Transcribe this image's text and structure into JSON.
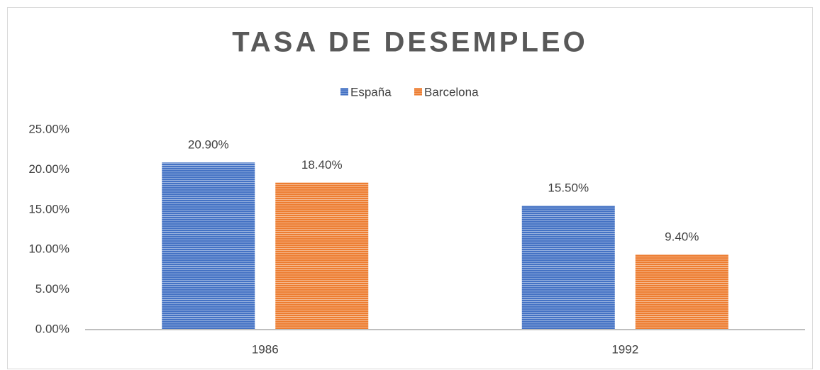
{
  "chart_data": {
    "type": "bar",
    "title": "TASA DE DESEMPLEO",
    "categories": [
      "1986",
      "1992"
    ],
    "series": [
      {
        "name": "España",
        "color": "#4472c4",
        "values": [
          20.9,
          15.5
        ],
        "value_labels": [
          "20.90%",
          "15.50%"
        ]
      },
      {
        "name": "Barcelona",
        "color": "#ed7d31",
        "values": [
          18.4,
          9.4
        ],
        "value_labels": [
          "18.40%",
          "9.40%"
        ]
      }
    ],
    "ylim": [
      0,
      25
    ],
    "yticks": [
      {
        "value": 0,
        "label": "0.00%"
      },
      {
        "value": 5,
        "label": "5.00%"
      },
      {
        "value": 10,
        "label": "10.00%"
      },
      {
        "value": 15,
        "label": "15.00%"
      },
      {
        "value": 20,
        "label": "20.00%"
      },
      {
        "value": 25,
        "label": "25.00%"
      }
    ],
    "grid": false,
    "legend": "top"
  }
}
